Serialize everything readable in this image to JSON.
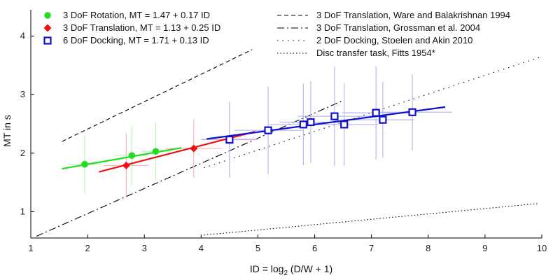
{
  "chart_data": {
    "type": "scatter",
    "xlabel_prefix": "ID = log",
    "xlabel_sub": "2",
    "xlabel_suffix": " (D/W + 1)",
    "ylabel": "MT in s",
    "xlim": [
      1,
      10
    ],
    "ylim": [
      0.55,
      4.45
    ],
    "xticks": [
      1,
      2,
      3,
      4,
      5,
      6,
      7,
      8,
      9,
      10
    ],
    "yticks": [
      1,
      2,
      3,
      4
    ],
    "grid": false,
    "legend_left_position": "top-left",
    "legend_right_position": "top-right",
    "series": [
      {
        "name": "3 DoF Rotation, MT = 1.47 + 0.17 ID",
        "color": "#22dd22",
        "marker": "circle",
        "points": [
          {
            "x": 1.95,
            "y": 1.81,
            "xerr": 0.3,
            "yerr": 0.5
          },
          {
            "x": 2.78,
            "y": 1.96,
            "xerr": 0.3,
            "yerr": 0.5
          },
          {
            "x": 3.2,
            "y": 2.03,
            "xerr": 0.25,
            "yerr": 0.5
          }
        ],
        "fit": {
          "intercept": 1.47,
          "slope": 0.17,
          "x_start": 1.55,
          "x_end": 3.65
        }
      },
      {
        "name": "3 DoF Translation, MT = 1.13 + 0.25 ID",
        "color": "#ee1111",
        "marker": "diamond",
        "points": [
          {
            "x": 2.68,
            "y": 1.79,
            "xerr": 0.4,
            "yerr": 0.55
          },
          {
            "x": 3.87,
            "y": 2.08,
            "xerr": 0.5,
            "yerr": 0.5
          },
          {
            "x": 4.5,
            "y": 2.24,
            "xerr": 0.5,
            "yerr": 0.55
          }
        ],
        "fit": {
          "intercept": 1.13,
          "slope": 0.25,
          "x_start": 2.2,
          "x_end": 4.95
        }
      },
      {
        "name": "6 DoF Docking, MT = 1.71 + 0.13 ID",
        "color": "#1111cc",
        "marker": "square",
        "points": [
          {
            "x": 4.5,
            "y": 2.23,
            "xerr": 0.5,
            "yerr": 0.65
          },
          {
            "x": 5.18,
            "y": 2.39,
            "xerr": 0.6,
            "yerr": 0.75
          },
          {
            "x": 5.8,
            "y": 2.49,
            "xerr": 0.6,
            "yerr": 0.7
          },
          {
            "x": 5.93,
            "y": 2.53,
            "xerr": 0.55,
            "yerr": 0.7
          },
          {
            "x": 6.35,
            "y": 2.63,
            "xerr": 0.65,
            "yerr": 0.85
          },
          {
            "x": 6.52,
            "y": 2.49,
            "xerr": 0.6,
            "yerr": 0.7
          },
          {
            "x": 7.08,
            "y": 2.69,
            "xerr": 0.6,
            "yerr": 0.8
          },
          {
            "x": 7.2,
            "y": 2.57,
            "xerr": 0.55,
            "yerr": 0.65
          },
          {
            "x": 7.72,
            "y": 2.7,
            "xerr": 0.7,
            "yerr": 0.65
          }
        ],
        "fit": {
          "intercept": 1.71,
          "slope": 0.13,
          "x_start": 4.1,
          "x_end": 8.3
        }
      }
    ],
    "reference_lines": [
      {
        "name": "3 DoF Translation, Ware and Balakrishnan 1994",
        "dash": "6,4",
        "x1": 1.55,
        "y1": 2.2,
        "x2": 4.9,
        "y2": 3.77
      },
      {
        "name": "3 DoF Translation, Grossman et al. 2004",
        "dash": "10,4,2,4",
        "x1": 1.1,
        "y1": 0.58,
        "x2": 6.5,
        "y2": 2.9
      },
      {
        "name": "2 DoF Docking, Stoelen and Akin 2010",
        "dash": "1.5,6",
        "x1": 4.05,
        "y1": 1.75,
        "x2": 10.0,
        "y2": 3.65
      },
      {
        "name": "Disc transfer task, Fitts 1954*",
        "dash": "1.5,3",
        "x1": 4.05,
        "y1": 0.6,
        "x2": 9.95,
        "y2": 1.14
      }
    ]
  }
}
